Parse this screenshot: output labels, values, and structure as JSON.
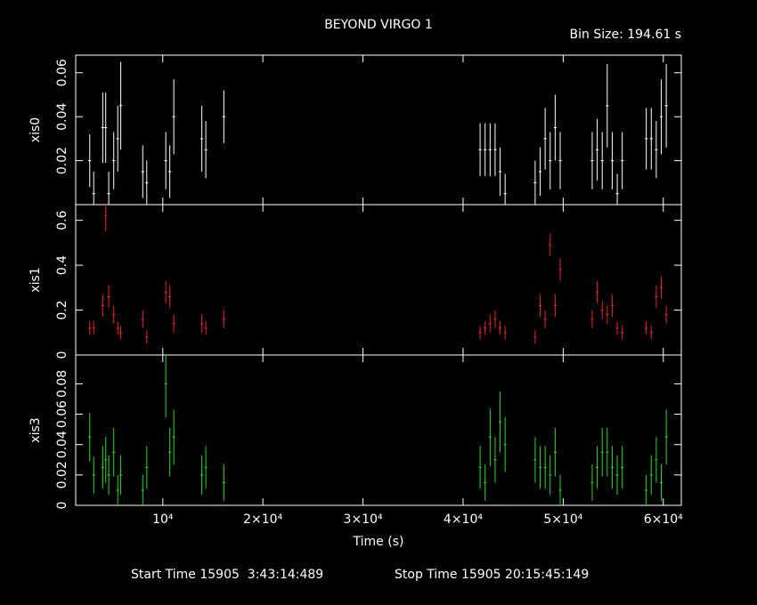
{
  "title": "BEYOND VIRGO 1",
  "bin_size": "Bin Size: 194.61 s",
  "xlabel": "Time (s)",
  "start_time": "Start Time 15905  3:43:14:489",
  "stop_time": "Stop Time 15905 20:15:45:149",
  "x_axis": {
    "xlim": [
      1300,
      61800
    ],
    "xticks": [
      {
        "value": 10000,
        "label": "10⁴"
      },
      {
        "value": 20000,
        "label": "2×10⁴"
      },
      {
        "value": 30000,
        "label": "3×10⁴"
      },
      {
        "value": 40000,
        "label": "4×10⁴"
      },
      {
        "value": 50000,
        "label": "5×10⁴"
      },
      {
        "value": 60000,
        "label": "6×10⁴"
      }
    ]
  },
  "chart_data": [
    {
      "type": "errorbar",
      "ylabel": "xis0",
      "color": "#ffffff",
      "ylim": [
        0,
        0.068
      ],
      "yticks": [
        0.02,
        0.04,
        0.06
      ],
      "x": [
        2700,
        3100,
        4000,
        4300,
        4600,
        5100,
        5500,
        5800,
        8000,
        8400,
        10300,
        10700,
        11100,
        13900,
        14300,
        16100,
        41700,
        42200,
        42700,
        43200,
        43700,
        44200,
        47200,
        47700,
        48200,
        48700,
        49200,
        49700,
        52900,
        53400,
        53900,
        54400,
        54900,
        55400,
        55900,
        58300,
        58800,
        59300,
        59800,
        60300
      ],
      "values": [
        0.02,
        0.005,
        0.035,
        0.035,
        0.005,
        0.02,
        0.03,
        0.045,
        0.015,
        0.01,
        0.02,
        0.015,
        0.04,
        0.03,
        0.025,
        0.04,
        0.025,
        0.025,
        0.025,
        0.025,
        0.015,
        0.005,
        0.01,
        0.015,
        0.03,
        0.02,
        0.035,
        0.02,
        0.02,
        0.025,
        0.02,
        0.045,
        0.02,
        0.005,
        0.02,
        0.03,
        0.03,
        0.025,
        0.04,
        0.045
      ],
      "errors": [
        0.012,
        0.01,
        0.016,
        0.016,
        0.01,
        0.013,
        0.015,
        0.02,
        0.012,
        0.01,
        0.013,
        0.012,
        0.017,
        0.015,
        0.013,
        0.012,
        0.012,
        0.012,
        0.012,
        0.012,
        0.011,
        0.009,
        0.01,
        0.011,
        0.014,
        0.013,
        0.015,
        0.013,
        0.013,
        0.014,
        0.013,
        0.019,
        0.013,
        0.009,
        0.013,
        0.014,
        0.014,
        0.013,
        0.017,
        0.019
      ]
    },
    {
      "type": "errorbar",
      "ylabel": "xis1",
      "color": "#ee2020",
      "ylim": [
        0,
        0.67
      ],
      "yticks": [
        0,
        0.2,
        0.4,
        0.6
      ],
      "x": [
        2700,
        3100,
        4000,
        4300,
        4600,
        5100,
        5500,
        5800,
        8000,
        8400,
        10300,
        10700,
        11100,
        13900,
        14300,
        16100,
        41700,
        42200,
        42700,
        43200,
        43700,
        44200,
        47200,
        47700,
        48200,
        48700,
        49200,
        49700,
        52900,
        53400,
        53900,
        54400,
        54900,
        55400,
        55900,
        58300,
        58800,
        59300,
        59800,
        60300
      ],
      "values": [
        0.12,
        0.12,
        0.22,
        0.62,
        0.26,
        0.18,
        0.12,
        0.1,
        0.16,
        0.08,
        0.28,
        0.26,
        0.14,
        0.14,
        0.12,
        0.16,
        0.1,
        0.12,
        0.14,
        0.16,
        0.12,
        0.1,
        0.08,
        0.22,
        0.16,
        0.49,
        0.22,
        0.38,
        0.16,
        0.28,
        0.2,
        0.18,
        0.22,
        0.12,
        0.1,
        0.12,
        0.1,
        0.26,
        0.3,
        0.18
      ],
      "errors": [
        0.03,
        0.03,
        0.05,
        0.07,
        0.05,
        0.04,
        0.03,
        0.03,
        0.04,
        0.03,
        0.05,
        0.05,
        0.04,
        0.04,
        0.03,
        0.04,
        0.03,
        0.03,
        0.04,
        0.04,
        0.03,
        0.03,
        0.03,
        0.05,
        0.04,
        0.05,
        0.05,
        0.05,
        0.04,
        0.05,
        0.04,
        0.04,
        0.05,
        0.03,
        0.03,
        0.03,
        0.03,
        0.05,
        0.05,
        0.04
      ]
    },
    {
      "type": "errorbar",
      "ylabel": "xis3",
      "color": "#20dd20",
      "ylim": [
        0,
        0.099
      ],
      "yticks": [
        0,
        0.02,
        0.04,
        0.06,
        0.08
      ],
      "x": [
        2700,
        3100,
        4000,
        4300,
        4600,
        5100,
        5500,
        5800,
        8000,
        8400,
        10300,
        10700,
        11100,
        13900,
        14300,
        16100,
        41700,
        42200,
        42700,
        43200,
        43700,
        44200,
        47200,
        47700,
        48200,
        48700,
        49200,
        49700,
        52900,
        53400,
        53900,
        54400,
        54900,
        55400,
        55900,
        58300,
        58800,
        59300,
        59800,
        60300
      ],
      "values": [
        0.045,
        0.02,
        0.025,
        0.03,
        0.02,
        0.035,
        0.01,
        0.02,
        0.01,
        0.025,
        0.08,
        0.035,
        0.045,
        0.02,
        0.025,
        0.015,
        0.025,
        0.015,
        0.045,
        0.03,
        0.055,
        0.04,
        0.03,
        0.025,
        0.025,
        0.02,
        0.035,
        0.01,
        0.015,
        0.025,
        0.035,
        0.035,
        0.025,
        0.02,
        0.025,
        0.01,
        0.02,
        0.03,
        0.015,
        0.045
      ],
      "errors": [
        0.016,
        0.012,
        0.014,
        0.015,
        0.013,
        0.016,
        0.01,
        0.013,
        0.01,
        0.014,
        0.022,
        0.016,
        0.018,
        0.013,
        0.014,
        0.012,
        0.014,
        0.012,
        0.019,
        0.015,
        0.02,
        0.018,
        0.015,
        0.014,
        0.014,
        0.013,
        0.016,
        0.01,
        0.012,
        0.014,
        0.016,
        0.016,
        0.014,
        0.013,
        0.014,
        0.01,
        0.013,
        0.015,
        0.012,
        0.018
      ]
    }
  ]
}
